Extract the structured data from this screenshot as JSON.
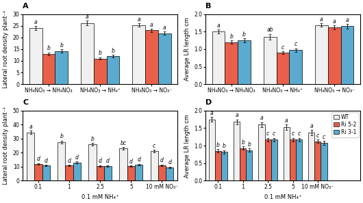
{
  "chart_data": [
    {
      "type": "bar",
      "title": "A",
      "ylabel": "Lateral root density plant⁻¹",
      "categories": [
        "NH₄NO₃ → NH₄NO₃",
        "NH₄NO₃ → NH₄⁺",
        "NH₄NO₃ → NO₃⁻"
      ],
      "ylim": [
        0,
        30
      ],
      "yticks": [
        0,
        5,
        10,
        15,
        20,
        25,
        30
      ],
      "grid": false,
      "series": [
        {
          "name": "WT",
          "color": "#f0f0f0",
          "values": [
            24.0,
            26.2,
            25.3
          ],
          "errors": [
            0.8,
            0.9,
            0.7
          ],
          "annotations": [
            "a",
            "a",
            "a"
          ]
        },
        {
          "name": "Ri 5-2",
          "color": "#e8604a",
          "values": [
            13.0,
            11.0,
            23.0
          ],
          "errors": [
            0.6,
            0.5,
            0.6
          ],
          "annotations": [
            "b",
            "b",
            "a"
          ]
        },
        {
          "name": "Ri 3-1",
          "color": "#5aabcf",
          "values": [
            14.2,
            12.0,
            21.8
          ],
          "errors": [
            0.7,
            0.5,
            0.7
          ],
          "annotations": [
            "b",
            "b",
            "a"
          ]
        }
      ]
    },
    {
      "type": "bar",
      "title": "B",
      "ylabel": "Average LR length cm",
      "categories": [
        "NH₄NO₃ → NH₄NO₃",
        "NH₄NO₃ → NH₄⁺",
        "NH₄NO₃ → NO₃⁻"
      ],
      "ylim": [
        0,
        2
      ],
      "yticks": [
        {
          "value": 0,
          "label": "0.0"
        },
        0.5,
        {
          "value": 1,
          "label": "1.0"
        },
        1.5,
        {
          "value": 2,
          "label": "2.0"
        }
      ],
      "grid": false,
      "series": [
        {
          "name": "WT",
          "color": "#f0f0f0",
          "values": [
            1.5,
            1.35,
            1.68
          ],
          "errors": [
            0.06,
            0.08,
            0.05
          ],
          "annotations": [
            "a",
            "ab",
            "a"
          ]
        },
        {
          "name": "Ri 5-2",
          "color": "#e8604a",
          "values": [
            1.2,
            0.9,
            1.62
          ],
          "errors": [
            0.05,
            0.04,
            0.06
          ],
          "annotations": [
            "b",
            "c",
            "a"
          ]
        },
        {
          "name": "Ri 3-1",
          "color": "#5aabcf",
          "values": [
            1.25,
            0.97,
            1.65
          ],
          "errors": [
            0.05,
            0.05,
            0.06
          ],
          "annotations": [
            "b",
            "c",
            "a"
          ]
        }
      ]
    },
    {
      "type": "bar",
      "title": "C",
      "ylabel": "Lateral root density plant⁻¹",
      "xlabel": "0.1 mM NH₄⁺",
      "categories": [
        "0.1",
        "1",
        "2.5",
        "5",
        "10 mM NO₃⁻"
      ],
      "ylim": [
        0,
        50
      ],
      "yticks": [
        0,
        10,
        20,
        30,
        40,
        50
      ],
      "grid": false,
      "series": [
        {
          "name": "WT",
          "color": "#f0f0f0",
          "values": [
            34.5,
            27.5,
            26.0,
            23.0,
            21.0
          ],
          "errors": [
            1.2,
            1.0,
            1.0,
            1.0,
            1.0
          ],
          "annotations": [
            "a",
            "b",
            "b",
            "bc",
            "c"
          ]
        },
        {
          "name": "Ri 5-2",
          "color": "#e8604a",
          "values": [
            12.0,
            10.8,
            10.5,
            10.3,
            11.0
          ],
          "errors": [
            0.6,
            0.5,
            0.5,
            0.5,
            0.6
          ],
          "annotations": [
            "d",
            "d",
            "d",
            "d",
            "d"
          ]
        },
        {
          "name": "Ri 3-1",
          "color": "#5aabcf",
          "values": [
            10.8,
            13.0,
            10.5,
            11.5,
            9.5
          ],
          "errors": [
            0.5,
            0.7,
            0.5,
            0.6,
            0.5
          ],
          "annotations": [
            "d",
            "d",
            "d",
            "d",
            "d"
          ]
        }
      ]
    },
    {
      "type": "bar",
      "title": "D",
      "ylabel": "Average LR length cm",
      "xlabel": "0.1 mM NH₄⁺",
      "categories": [
        "0.1",
        "1",
        "2.5",
        "5",
        "10 mM NO₃⁻"
      ],
      "ylim": [
        0,
        2
      ],
      "yticks": [
        {
          "value": 0,
          "label": "0.0"
        },
        0.5,
        {
          "value": 1,
          "label": "1.0"
        },
        1.5,
        {
          "value": 2,
          "label": "2.0"
        }
      ],
      "grid": false,
      "legend": "upper right",
      "series": [
        {
          "name": "WT",
          "color": "#f0f0f0",
          "values": [
            1.75,
            1.68,
            1.6,
            1.52,
            1.37
          ],
          "errors": [
            0.07,
            0.07,
            0.07,
            0.08,
            0.07
          ],
          "annotations": [
            "a",
            "a",
            "a",
            "a",
            "a"
          ]
        },
        {
          "name": "Ri 5-2",
          "color": "#e8604a",
          "values": [
            0.85,
            0.93,
            1.17,
            1.17,
            1.12
          ],
          "errors": [
            0.05,
            0.05,
            0.05,
            0.05,
            0.05
          ],
          "annotations": [
            "b",
            "b",
            "c",
            "c",
            "c"
          ]
        },
        {
          "name": "Ri 3-1",
          "color": "#5aabcf",
          "values": [
            0.82,
            0.87,
            1.17,
            1.17,
            1.08
          ],
          "errors": [
            0.05,
            0.05,
            0.05,
            0.05,
            0.05
          ],
          "annotations": [
            "b",
            "b",
            "c",
            "c",
            "c"
          ]
        }
      ]
    }
  ]
}
